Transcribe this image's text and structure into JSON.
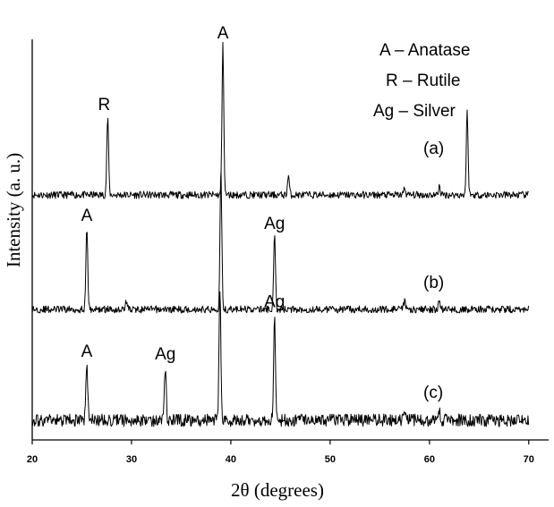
{
  "chart_data": {
    "type": "line",
    "title": "",
    "xlabel": "2θ (degrees)",
    "ylabel": "Intensity (a. u.)",
    "xlim": [
      20,
      72
    ],
    "x_ticks": [
      20,
      30,
      40,
      50,
      60,
      70
    ],
    "y_ticks": [],
    "grid": false,
    "legend": {
      "placement": "top-right",
      "entries": [
        "A – Anatase",
        "R – Rutile",
        "Ag – Silver"
      ]
    },
    "series": [
      {
        "name": "(a)",
        "x_range": [
          20,
          70
        ],
        "baseline": 0.0,
        "peaks": [
          {
            "x": 27.6,
            "height": 0.52,
            "label": "R"
          },
          {
            "x": 39.2,
            "height": 1.0,
            "label": "A"
          },
          {
            "x": 45.8,
            "height": 0.13,
            "label": ""
          },
          {
            "x": 57.5,
            "height": 0.05,
            "label": ""
          },
          {
            "x": 61.0,
            "height": 0.06,
            "label": ""
          },
          {
            "x": 63.8,
            "height": 0.55,
            "label": ""
          }
        ]
      },
      {
        "name": "(b)",
        "x_range": [
          20,
          70
        ],
        "baseline": 0.0,
        "peaks": [
          {
            "x": 25.5,
            "height": 0.52,
            "label": "A"
          },
          {
            "x": 29.5,
            "height": 0.06,
            "label": ""
          },
          {
            "x": 39.0,
            "height": 0.9,
            "label": ""
          },
          {
            "x": 44.4,
            "height": 0.47,
            "label": "Ag"
          },
          {
            "x": 57.5,
            "height": 0.05,
            "label": ""
          },
          {
            "x": 61.0,
            "height": 0.05,
            "label": ""
          }
        ]
      },
      {
        "name": "(c)",
        "x_range": [
          20,
          70
        ],
        "baseline": 0.0,
        "peaks": [
          {
            "x": 25.5,
            "height": 0.4,
            "label": "A"
          },
          {
            "x": 33.4,
            "height": 0.38,
            "label": "Ag"
          },
          {
            "x": 38.9,
            "height": 0.95,
            "label": ""
          },
          {
            "x": 44.4,
            "height": 0.75,
            "label": "Ag"
          },
          {
            "x": 57.5,
            "height": 0.06,
            "label": ""
          },
          {
            "x": 61.0,
            "height": 0.07,
            "label": ""
          }
        ]
      }
    ]
  }
}
